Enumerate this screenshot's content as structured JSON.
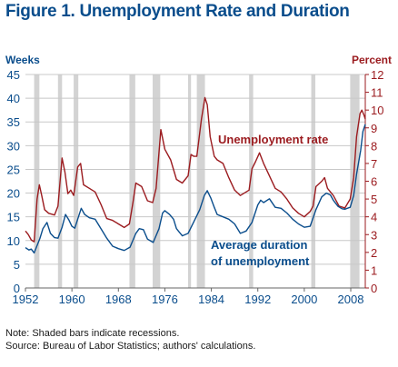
{
  "title": "Figure 1. Unemployment Rate and Duration",
  "colors": {
    "title": "#0a4d8c",
    "left_axis": "#0a4d8c",
    "right_axis": "#9b1b1f",
    "rate_line": "#9b1b1f",
    "duration_line": "#0a4d8c",
    "recession": "#d3d3d3",
    "grid": "#c8c8c8"
  },
  "notes": {
    "line1": "Note: Shaded bars indicate recessions.",
    "line2": "Source: Bureau of Labor Statistics; authors' calculations."
  },
  "chart_data": {
    "type": "line",
    "left_axis": {
      "label": "Weeks",
      "ticks": [
        "0",
        "5",
        "10",
        "15",
        "20",
        "25",
        "30",
        "35",
        "40",
        "45"
      ],
      "range": [
        0,
        45
      ]
    },
    "right_axis": {
      "label": "Percent",
      "ticks": [
        "0",
        "1",
        "2",
        "3",
        "4",
        "5",
        "6",
        "7",
        "8",
        "9",
        "10",
        "11",
        "12"
      ],
      "range": [
        0,
        12
      ]
    },
    "x_ticks": [
      "1952",
      "1960",
      "1968",
      "1976",
      "1984",
      "1992",
      "2000",
      "2008"
    ],
    "x_range": [
      1952,
      2010.5
    ],
    "grid": "horizontal",
    "recessions": [
      [
        1953.5,
        1954.4
      ],
      [
        1957.6,
        1958.3
      ],
      [
        1960.3,
        1961.1
      ],
      [
        1969.9,
        1970.9
      ],
      [
        1973.9,
        1975.2
      ],
      [
        1980.0,
        1980.5
      ],
      [
        1981.5,
        1982.9
      ],
      [
        1990.5,
        1991.2
      ],
      [
        2001.2,
        2001.9
      ],
      [
        2007.9,
        2009.5
      ]
    ],
    "annotations": {
      "rate": "Unemployment rate",
      "duration_1": "Average duration",
      "duration_2": "of unemployment"
    },
    "series": [
      {
        "key": "rate",
        "axis": "right",
        "points": [
          [
            1952,
            3.2
          ],
          [
            1952.5,
            3.0
          ],
          [
            1953,
            2.7
          ],
          [
            1953.5,
            2.6
          ],
          [
            1954,
            5.0
          ],
          [
            1954.4,
            5.8
          ],
          [
            1954.8,
            5.2
          ],
          [
            1955.3,
            4.4
          ],
          [
            1956,
            4.2
          ],
          [
            1957,
            4.1
          ],
          [
            1957.6,
            4.6
          ],
          [
            1958.3,
            7.3
          ],
          [
            1958.8,
            6.5
          ],
          [
            1959.3,
            5.3
          ],
          [
            1959.8,
            5.5
          ],
          [
            1960.3,
            5.2
          ],
          [
            1961,
            6.8
          ],
          [
            1961.5,
            7.0
          ],
          [
            1962,
            5.8
          ],
          [
            1963,
            5.6
          ],
          [
            1964,
            5.4
          ],
          [
            1965,
            4.7
          ],
          [
            1966,
            3.9
          ],
          [
            1967,
            3.8
          ],
          [
            1968,
            3.6
          ],
          [
            1969,
            3.4
          ],
          [
            1969.9,
            3.6
          ],
          [
            1970.5,
            4.8
          ],
          [
            1971,
            5.9
          ],
          [
            1972,
            5.7
          ],
          [
            1973,
            4.9
          ],
          [
            1973.9,
            4.8
          ],
          [
            1974.5,
            5.6
          ],
          [
            1975.3,
            8.9
          ],
          [
            1976,
            7.8
          ],
          [
            1977,
            7.2
          ],
          [
            1978,
            6.1
          ],
          [
            1979,
            5.9
          ],
          [
            1980.0,
            6.3
          ],
          [
            1980.5,
            7.5
          ],
          [
            1981,
            7.4
          ],
          [
            1981.5,
            7.4
          ],
          [
            1982.3,
            9.5
          ],
          [
            1982.9,
            10.7
          ],
          [
            1983.3,
            10.3
          ],
          [
            1983.8,
            8.5
          ],
          [
            1984.5,
            7.4
          ],
          [
            1985,
            7.2
          ],
          [
            1986,
            7.0
          ],
          [
            1987,
            6.2
          ],
          [
            1988,
            5.5
          ],
          [
            1989,
            5.2
          ],
          [
            1990.5,
            5.5
          ],
          [
            1991,
            6.7
          ],
          [
            1991.6,
            7.1
          ],
          [
            1992.3,
            7.6
          ],
          [
            1993,
            7.0
          ],
          [
            1994,
            6.3
          ],
          [
            1995,
            5.6
          ],
          [
            1996,
            5.4
          ],
          [
            1997,
            5.0
          ],
          [
            1998,
            4.5
          ],
          [
            1999,
            4.2
          ],
          [
            2000,
            4.0
          ],
          [
            2001,
            4.3
          ],
          [
            2001.5,
            4.6
          ],
          [
            2002,
            5.7
          ],
          [
            2003,
            6.0
          ],
          [
            2003.5,
            6.2
          ],
          [
            2004,
            5.6
          ],
          [
            2005,
            5.2
          ],
          [
            2006,
            4.6
          ],
          [
            2007,
            4.5
          ],
          [
            2007.9,
            5.0
          ],
          [
            2008.5,
            6.2
          ],
          [
            2009,
            8.5
          ],
          [
            2009.6,
            9.8
          ],
          [
            2009.9,
            10.0
          ],
          [
            2010.3,
            9.7
          ],
          [
            2010.5,
            9.5
          ]
        ]
      },
      {
        "key": "duration",
        "axis": "left",
        "points": [
          [
            1952,
            8.5
          ],
          [
            1952.6,
            8.0
          ],
          [
            1953,
            8.2
          ],
          [
            1953.5,
            7.4
          ],
          [
            1954.5,
            10.5
          ],
          [
            1955,
            12.5
          ],
          [
            1955.7,
            13.8
          ],
          [
            1956.3,
            11.5
          ],
          [
            1957,
            10.6
          ],
          [
            1957.6,
            10.5
          ],
          [
            1958.3,
            12.8
          ],
          [
            1958.9,
            15.5
          ],
          [
            1959.5,
            14.3
          ],
          [
            1960,
            13.0
          ],
          [
            1960.5,
            12.6
          ],
          [
            1961,
            14.5
          ],
          [
            1961.6,
            16.8
          ],
          [
            1962.2,
            15.5
          ],
          [
            1963,
            14.8
          ],
          [
            1964,
            14.5
          ],
          [
            1965,
            12.5
          ],
          [
            1966,
            10.5
          ],
          [
            1967,
            8.8
          ],
          [
            1968,
            8.3
          ],
          [
            1969,
            7.9
          ],
          [
            1970,
            8.6
          ],
          [
            1971,
            11.5
          ],
          [
            1971.6,
            12.5
          ],
          [
            1972.3,
            12.3
          ],
          [
            1973,
            10.3
          ],
          [
            1974,
            9.6
          ],
          [
            1975,
            12.5
          ],
          [
            1975.6,
            15.8
          ],
          [
            1976,
            16.3
          ],
          [
            1976.8,
            15.5
          ],
          [
            1977.5,
            14.5
          ],
          [
            1978,
            12.5
          ],
          [
            1979,
            11.0
          ],
          [
            1980,
            11.5
          ],
          [
            1981,
            14.0
          ],
          [
            1982,
            16.5
          ],
          [
            1982.8,
            19.5
          ],
          [
            1983.3,
            20.5
          ],
          [
            1983.9,
            19.0
          ],
          [
            1984.5,
            17.0
          ],
          [
            1985,
            15.5
          ],
          [
            1986,
            15.0
          ],
          [
            1987,
            14.5
          ],
          [
            1988,
            13.5
          ],
          [
            1989,
            11.5
          ],
          [
            1990,
            12.0
          ],
          [
            1991,
            13.8
          ],
          [
            1992,
            17.5
          ],
          [
            1992.5,
            18.5
          ],
          [
            1993,
            18.0
          ],
          [
            1994,
            18.8
          ],
          [
            1995,
            17.0
          ],
          [
            1996,
            16.8
          ],
          [
            1997,
            15.8
          ],
          [
            1998,
            14.5
          ],
          [
            1999,
            13.5
          ],
          [
            2000,
            12.8
          ],
          [
            2001,
            13.0
          ],
          [
            2002,
            16.5
          ],
          [
            2003,
            19.2
          ],
          [
            2003.8,
            20.0
          ],
          [
            2004.5,
            19.6
          ],
          [
            2005,
            18.5
          ],
          [
            2005.8,
            17.2
          ],
          [
            2006.5,
            16.7
          ],
          [
            2007,
            16.6
          ],
          [
            2007.9,
            17.0
          ],
          [
            2008.5,
            19.5
          ],
          [
            2009,
            24.0
          ],
          [
            2009.7,
            29.0
          ],
          [
            2010.1,
            33.0
          ],
          [
            2010.5,
            34.5
          ]
        ]
      }
    ]
  }
}
